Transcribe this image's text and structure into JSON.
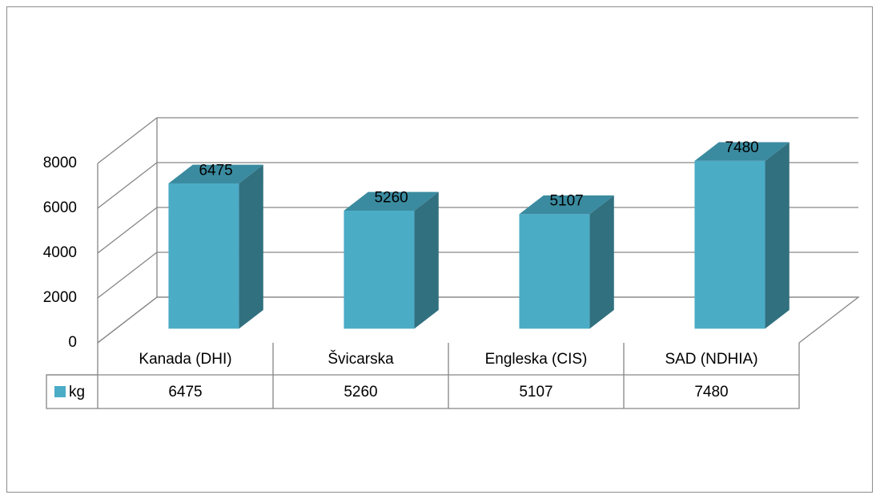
{
  "chart_data": {
    "type": "bar3d",
    "categories": [
      "Kanada (DHI)",
      "Švicarska",
      "Engleska (CIS)",
      "SAD (NDHIA)"
    ],
    "series": [
      {
        "name": "kg",
        "color": "#4bacc6",
        "values": [
          6475,
          5260,
          5107,
          7480
        ]
      }
    ],
    "ylim": [
      0,
      8000
    ],
    "yticks": [
      0,
      2000,
      4000,
      6000,
      8000
    ],
    "grid": true,
    "data_table": true
  }
}
